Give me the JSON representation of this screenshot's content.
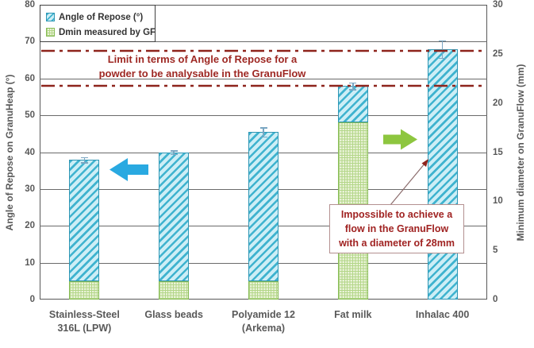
{
  "chart_data": {
    "type": "bar",
    "title": "",
    "categories": [
      "Stainless-Steel 316L (LPW)",
      "Glass beads",
      "Polyamide 12 (Arkema)",
      "Fat milk",
      "Inhalac 400"
    ],
    "category_label_lines": [
      [
        "Stainless-Steel",
        "316L (LPW)"
      ],
      [
        "Glass beads"
      ],
      [
        "Polyamide 12",
        "(Arkema)"
      ],
      [
        "Fat milk"
      ],
      [
        "Inhalac 400"
      ]
    ],
    "series": [
      {
        "name": "Angle of Repose (°)",
        "axis": "left",
        "values": [
          38,
          40,
          45.5,
          58,
          68
        ],
        "error_bars": [
          0.7,
          0.5,
          1.2,
          0.9,
          2.4
        ]
      },
      {
        "name": "Dmin measured by GF",
        "axis": "right",
        "values_mm": [
          1.9,
          1.9,
          1.9,
          18,
          null
        ],
        "values_left_axis_equivalent": [
          5,
          5,
          5,
          48,
          null
        ]
      }
    ],
    "left_axis": {
      "label": "Angle of Repose on GranuHeap (°)",
      "min": 0,
      "max": 80,
      "tick_step": 10,
      "ticks": [
        "0",
        "10",
        "20",
        "30",
        "40",
        "50",
        "60",
        "70",
        "80"
      ]
    },
    "right_axis": {
      "label": "Minimum diameter on GranuFlow (mm)",
      "min": 0,
      "max": 30,
      "tick_step": 5,
      "ticks": [
        "0",
        "5",
        "10",
        "15",
        "20",
        "25",
        "30"
      ]
    },
    "reference_lines": [
      {
        "value_left_axis": 67.5,
        "style": "dash-dot",
        "color": "#8e241c"
      },
      {
        "value_left_axis": 58,
        "style": "dash-dot",
        "color": "#8e241c"
      }
    ],
    "grid": "horizontal",
    "legend_position": "top-left"
  },
  "legend": {
    "items": [
      {
        "label": "Angle of Repose (°)",
        "swatch": "blue-diagonal-hatch"
      },
      {
        "label": "Dmin measured by GF",
        "swatch": "green-cross-hatch"
      }
    ]
  },
  "annotations": {
    "limit": {
      "lines": [
        "Limit in terms of Angle of Repose for a",
        "powder to be analysable in the GranuFlow"
      ]
    },
    "impossible": {
      "lines": [
        "Impossible to achieve a",
        "flow in the GranuFlow",
        "with a diameter of 28mm"
      ]
    }
  },
  "arrows": [
    {
      "name": "left-arrow",
      "direction": "left",
      "color": "#29a9e1"
    },
    {
      "name": "right-arrow",
      "direction": "right",
      "color": "#8dc63f"
    }
  ],
  "colors": {
    "aor_stripe": "#3fb3cf",
    "aor_fill": "#cdeef6",
    "aor_border": "#2f96b4",
    "dmin_line": "#b3d688",
    "dmin_fill": "#eaf3d8",
    "dmin_border": "#86bb55",
    "reference_line": "#8e241c",
    "annotation_text": "#a02322",
    "axis_text": "#595959",
    "gridline": "#6a6a6a",
    "error_bar": "#7aa6c2",
    "arrow_blue": "#29a9e1",
    "arrow_green": "#8dc63f"
  }
}
